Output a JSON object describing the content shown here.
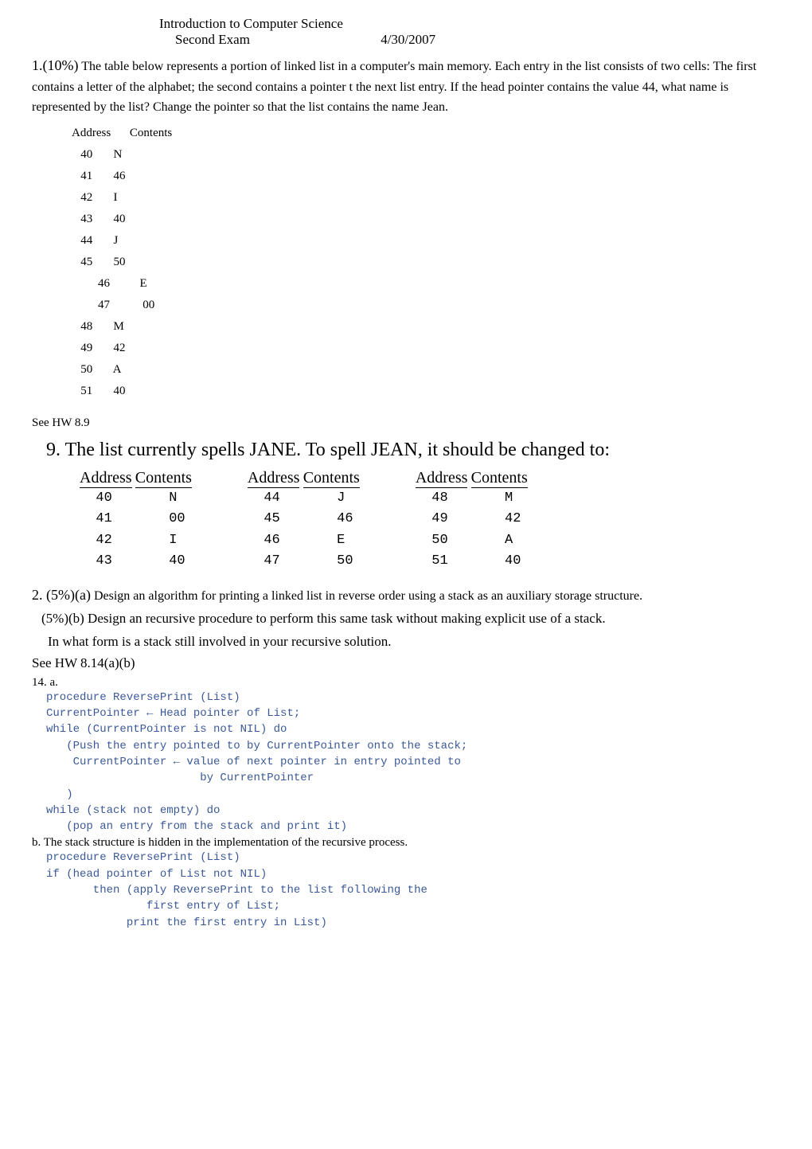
{
  "header": {
    "title": "Introduction to Computer Science",
    "exam": "Second Exam",
    "date": "4/30/2007"
  },
  "q1": {
    "num": "1.(10%)",
    "text": " The table below represents a portion of linked list in a computer's main memory. Each entry in the list consists of two cells: The first contains a letter of the alphabet; the second contains a pointer t the next list entry. If the head pointer contains the value 44, what name is represented by the list? Change the pointer so that the list contains the name Jean.",
    "addr_header": "Address       Contents",
    "rows": [
      "   40       N",
      "   41       46",
      "   42       I",
      "   43       40",
      "   44       J",
      "   45       50",
      "    46          E",
      "    47           00",
      "   48       M",
      "   49       42",
      "   50       A",
      "   51       40"
    ],
    "see_hw": "See HW 8.9"
  },
  "answer9": {
    "heading": "9. The list currently spells JANE. To spell JEAN, it should be changed to:",
    "col_head_addr": "Address",
    "col_head_cont": "Contents",
    "col1": [
      "  40       N",
      "  41       00",
      "  42       I",
      "  43       40"
    ],
    "col2": [
      "  44       J",
      "  45       46",
      "  46       E",
      "  47       50"
    ],
    "col3": [
      "  48       M",
      "  49       42",
      "  50       A",
      "  51       40"
    ]
  },
  "q2": {
    "num_a": "2. (5%)(a)",
    "text_a": " Design an algorithm for printing a linked list in reverse order using a stack as an auxiliary storage structure.",
    "text_b": "(5%)(b) Design an recursive procedure to perform this same task without making explicit use of a stack.",
    "text_c": "In what form is a stack still involved in your recursive solution.",
    "see_hw": "See HW 8.14(a)(b)"
  },
  "code14": {
    "label_a": "14. a.",
    "code_a": "procedure ReversePrint (List)\nCurrentPointer ← Head pointer of List;\nwhile (CurrentPointer is not NIL) do\n   (Push the entry pointed to by CurrentPointer onto the stack;\n    CurrentPointer ← value of next pointer in entry pointed to\n                       by CurrentPointer\n   )\nwhile (stack not empty) do\n   (pop an entry from the stack and print it)",
    "note_b": "b. The stack structure is hidden in the implementation of the recursive process.",
    "code_b": "procedure ReversePrint (List)\nif (head pointer of List not NIL)\n       then (apply ReversePrint to the list following the\n               first entry of List;\n            print the first entry in List)"
  }
}
